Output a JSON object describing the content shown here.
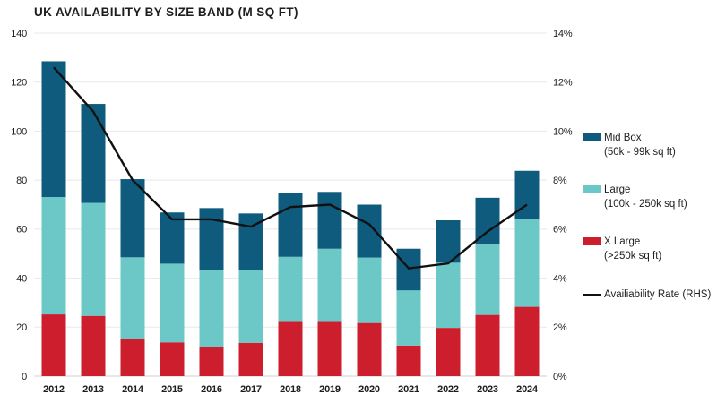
{
  "title": "UK AVAILABILITY BY SIZE BAND (M SQ FT)",
  "colors": {
    "mid_box": "#0f5b7d",
    "large": "#6cc8c6",
    "x_large": "#cd1e2d",
    "rate_line": "#111111",
    "grid": "#e8e8e8",
    "baseline": "#d0d0d0",
    "axis_text": "#1d1d1b"
  },
  "chart_data": {
    "type": "bar",
    "subtype": "stacked-column-with-line",
    "title": "UK AVAILABILITY BY SIZE BAND (M SQ FT)",
    "categories": [
      "2012",
      "2013",
      "2014",
      "2015",
      "2016",
      "2017",
      "2018",
      "2019",
      "2020",
      "2021",
      "2022",
      "2023",
      "2024"
    ],
    "series": [
      {
        "name": "X Large",
        "range": "(>250k sq ft)",
        "color_key": "x_large",
        "values": [
          25.2,
          24.6,
          15.1,
          13.8,
          11.8,
          13.6,
          22.5,
          22.5,
          21.7,
          12.5,
          19.7,
          25.0,
          28.3
        ]
      },
      {
        "name": "Large",
        "range": "(100k - 250k sq ft)",
        "color_key": "large",
        "values": [
          47.9,
          46.1,
          33.4,
          32.1,
          31.4,
          29.6,
          26.2,
          29.5,
          26.7,
          22.5,
          26.6,
          28.8,
          36.0
        ]
      },
      {
        "name": "Mid Box",
        "range": "(50k - 99k sq ft)",
        "color_key": "mid_box",
        "values": [
          55.4,
          40.4,
          31.9,
          20.9,
          25.4,
          23.2,
          26.0,
          23.2,
          21.6,
          17.0,
          17.3,
          19.0,
          19.5
        ]
      }
    ],
    "line_series": {
      "name": "Availiability Rate (RHS)",
      "axis": "right",
      "values": [
        12.6,
        10.8,
        8.0,
        6.4,
        6.4,
        6.1,
        6.9,
        7.0,
        6.2,
        4.4,
        4.6,
        5.9,
        7.0
      ]
    },
    "left_axis": {
      "min": 0,
      "max": 140,
      "ticks": [
        0,
        20,
        40,
        60,
        80,
        100,
        120,
        140
      ]
    },
    "right_axis": {
      "min": 0,
      "max": 14,
      "tick_values": [
        0,
        2,
        4,
        6,
        8,
        10,
        12,
        14
      ],
      "tick_labels": [
        "0%",
        "2%",
        "4%",
        "6%",
        "8%",
        "10%",
        "12%",
        "14%"
      ]
    },
    "grid": true,
    "legend_position": "right"
  },
  "legend": {
    "items": [
      {
        "name": "Mid Box",
        "range": "(50k - 99k sq ft)",
        "swatch": "mid_box"
      },
      {
        "name": "Large",
        "range": "(100k - 250k sq ft)",
        "swatch": "large"
      },
      {
        "name": "X Large",
        "range": "(>250k sq ft)",
        "swatch": "x_large"
      },
      {
        "name": "Availiability Rate (RHS)",
        "swatch": "rate_line"
      }
    ]
  }
}
